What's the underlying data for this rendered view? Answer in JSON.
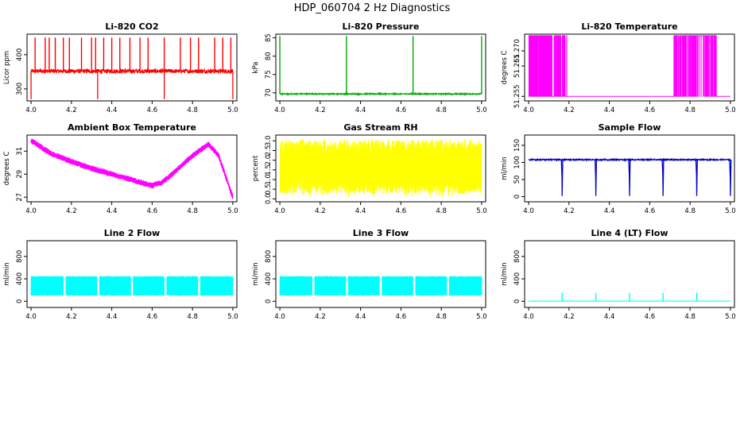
{
  "main_title": "HDP_060704  2 Hz Diagnostics",
  "chart_data": [
    {
      "id": "co2",
      "type": "line",
      "title": "Li-820 CO2",
      "ylabel": "Licor ppm",
      "color": "#ff0000",
      "ylim": [
        265,
        460
      ],
      "yticks": [
        "300",
        "400"
      ],
      "ytick_values": [
        300,
        400
      ],
      "xlim": [
        3.98,
        5.02
      ],
      "xticks": [
        "4.0",
        "4.2",
        "4.4",
        "4.6",
        "4.8",
        "5.0"
      ],
      "xtick_values": [
        4.0,
        4.2,
        4.4,
        4.6,
        4.8,
        5.0
      ],
      "signal": {
        "kind": "baseline",
        "base": 352,
        "noise": 6,
        "noise_period_pts": 0,
        "spikes": [
          4.02,
          4.07,
          4.09,
          4.12,
          4.16,
          4.19,
          4.25,
          4.3,
          4.32,
          4.36,
          4.4,
          4.44,
          4.49,
          4.54,
          4.58,
          4.66,
          4.74,
          4.79,
          4.83,
          4.91,
          4.95,
          4.99
        ],
        "spike_value": 450,
        "dips": [
          4.0,
          4.33,
          4.66,
          5.0
        ],
        "dip_value": 270
      }
    },
    {
      "id": "pressure",
      "type": "line",
      "title": "Li-820 Pressure",
      "ylabel": "kPa",
      "color": "#00aa00",
      "ylim": [
        67.8,
        86
      ],
      "yticks": [
        "70",
        "75",
        "80",
        "85"
      ],
      "ytick_values": [
        70,
        75,
        80,
        85
      ],
      "xlim": [
        3.98,
        5.02
      ],
      "xticks": [
        "4.0",
        "4.2",
        "4.4",
        "4.6",
        "4.8",
        "5.0"
      ],
      "xtick_values": [
        4.0,
        4.2,
        4.4,
        4.6,
        4.8,
        5.0
      ],
      "signal": {
        "kind": "baseline",
        "base": 69.7,
        "noise": 0.15,
        "noise_period_pts": 0,
        "spikes": [
          4.0,
          4.33,
          4.66,
          5.0
        ],
        "spike_value": 85.5,
        "dips": [],
        "dip_value": 69
      }
    },
    {
      "id": "temperature",
      "type": "line",
      "title": "Li-820 Temperature",
      "ylabel": "degrees C",
      "color": "#ff00ff",
      "ylim": [
        51.2535,
        51.2755
      ],
      "yticks": [
        "51.255",
        "51.265",
        "51.270"
      ],
      "ytick_values": [
        51.255,
        51.265,
        51.27
      ],
      "xlim": [
        3.98,
        5.02
      ],
      "xticks": [
        "4.0",
        "4.2",
        "4.4",
        "4.6",
        "4.8",
        "5.0"
      ],
      "xtick_values": [
        4.0,
        4.2,
        4.4,
        4.6,
        4.8,
        5.0
      ],
      "signal": {
        "kind": "binary",
        "low": 51.255,
        "high": 51.275,
        "bursts": [
          [
            4.0,
            4.05,
            0.5
          ],
          [
            4.05,
            4.1,
            0.35
          ],
          [
            4.1,
            4.19,
            0.22
          ],
          [
            4.72,
            4.77,
            0.4
          ],
          [
            4.77,
            4.93,
            0.85
          ]
        ]
      }
    },
    {
      "id": "ambient",
      "type": "line",
      "title": "Ambient Box Temperature",
      "ylabel": "degrees C",
      "color": "#ff00ff",
      "ylim": [
        26.6,
        32.4
      ],
      "yticks": [
        "27",
        "29",
        "31"
      ],
      "ytick_values": [
        27,
        29,
        31
      ],
      "xlim": [
        3.98,
        5.02
      ],
      "xticks": [
        "4.0",
        "4.2",
        "4.4",
        "4.6",
        "4.8",
        "5.0"
      ],
      "xtick_values": [
        4.0,
        4.2,
        4.4,
        4.6,
        4.8,
        5.0
      ],
      "signal": {
        "kind": "curve",
        "noise": 0.22,
        "knots": [
          [
            4.0,
            31.9
          ],
          [
            4.1,
            30.8
          ],
          [
            4.2,
            30.1
          ],
          [
            4.3,
            29.5
          ],
          [
            4.4,
            29.0
          ],
          [
            4.5,
            28.5
          ],
          [
            4.6,
            28.0
          ],
          [
            4.65,
            28.3
          ],
          [
            4.7,
            29.0
          ],
          [
            4.8,
            30.6
          ],
          [
            4.88,
            31.6
          ],
          [
            4.93,
            30.6
          ],
          [
            4.98,
            28.0
          ],
          [
            5.0,
            27.0
          ]
        ]
      }
    },
    {
      "id": "rh",
      "type": "line",
      "title": "Gas Stream RH",
      "ylabel": "percent",
      "color": "#ffff00",
      "ylim": [
        -0.15,
        3.3
      ],
      "yticks": [
        "0.0",
        "0.5",
        "1.0",
        "1.5",
        "2.0",
        "2.5",
        "3.0"
      ],
      "ytick_values": [
        0,
        0.5,
        1,
        1.5,
        2,
        2.5,
        3
      ],
      "xlim": [
        3.98,
        5.02
      ],
      "xticks": [
        "4.0",
        "4.2",
        "4.4",
        "4.6",
        "4.8",
        "5.0"
      ],
      "xtick_values": [
        4.0,
        4.2,
        4.4,
        4.6,
        4.8,
        5.0
      ],
      "signal": {
        "kind": "band",
        "center": 1.65,
        "half": 1.4,
        "dip_min": 0.05,
        "peak_max": 3.1
      }
    },
    {
      "id": "sample_flow",
      "type": "line",
      "title": "Sample Flow",
      "ylabel": "ml/min",
      "color": "#0000cc",
      "ylim": [
        -15,
        180
      ],
      "yticks": [
        "0",
        "50",
        "100",
        "150"
      ],
      "ytick_values": [
        0,
        50,
        100,
        150
      ],
      "xlim": [
        3.98,
        5.02
      ],
      "xticks": [
        "4.0",
        "4.2",
        "4.4",
        "4.6",
        "4.8",
        "5.0"
      ],
      "xtick_values": [
        4.0,
        4.2,
        4.4,
        4.6,
        4.8,
        5.0
      ],
      "signal": {
        "kind": "baseline",
        "base": 108,
        "noise": 1.8,
        "noise_period_pts": 0,
        "spikes": [],
        "spike_value": 0,
        "dips": [
          4.166,
          4.333,
          4.5,
          4.666,
          4.833,
          5.0
        ],
        "dip_value": 2,
        "ramp_dips": true
      }
    },
    {
      "id": "line2",
      "type": "line",
      "title": "Line 2 Flow",
      "ylabel": "ml/min",
      "color": "#00ffff",
      "ylim": [
        -110,
        1080
      ],
      "yticks": [
        "0",
        "400",
        "800"
      ],
      "ytick_values": [
        0,
        400,
        800
      ],
      "xlim": [
        3.98,
        5.02
      ],
      "xticks": [
        "4.0",
        "4.2",
        "4.4",
        "4.6",
        "4.8",
        "5.0"
      ],
      "xtick_values": [
        4.0,
        4.2,
        4.4,
        4.6,
        4.8,
        5.0
      ],
      "signal": {
        "kind": "block",
        "low": 100,
        "high": 450,
        "gaps": [
          4.166,
          4.333,
          4.5,
          4.666,
          4.833
        ],
        "gap_width": 0.006
      }
    },
    {
      "id": "line3",
      "type": "line",
      "title": "Line 3 Flow",
      "ylabel": "ml/min",
      "color": "#00ffff",
      "ylim": [
        -110,
        1080
      ],
      "yticks": [
        "0",
        "400",
        "800"
      ],
      "ytick_values": [
        0,
        400,
        800
      ],
      "xlim": [
        3.98,
        5.02
      ],
      "xticks": [
        "4.0",
        "4.2",
        "4.4",
        "4.6",
        "4.8",
        "5.0"
      ],
      "xtick_values": [
        4.0,
        4.2,
        4.4,
        4.6,
        4.8,
        5.0
      ],
      "signal": {
        "kind": "block",
        "low": 100,
        "high": 450,
        "gaps": [
          4.166,
          4.333,
          4.5,
          4.666,
          4.833
        ],
        "gap_width": 0.006
      }
    },
    {
      "id": "line4",
      "type": "line",
      "title": "Line 4 (LT) Flow",
      "ylabel": "ml/min",
      "color": "#00ffff",
      "ylim": [
        -110,
        1080
      ],
      "yticks": [
        "0",
        "400",
        "800"
      ],
      "ytick_values": [
        0,
        400,
        800
      ],
      "xlim": [
        3.98,
        5.02
      ],
      "xticks": [
        "4.0",
        "4.2",
        "4.4",
        "4.6",
        "4.8",
        "5.0"
      ],
      "xtick_values": [
        4.0,
        4.2,
        4.4,
        4.6,
        4.8,
        5.0
      ],
      "signal": {
        "kind": "baseline",
        "base": 2,
        "noise": 0,
        "noise_period_pts": 0,
        "spikes": [
          4.166,
          4.333,
          4.5,
          4.666,
          4.833
        ],
        "spike_value": 150,
        "dips": [],
        "dip_value": 0
      }
    }
  ]
}
